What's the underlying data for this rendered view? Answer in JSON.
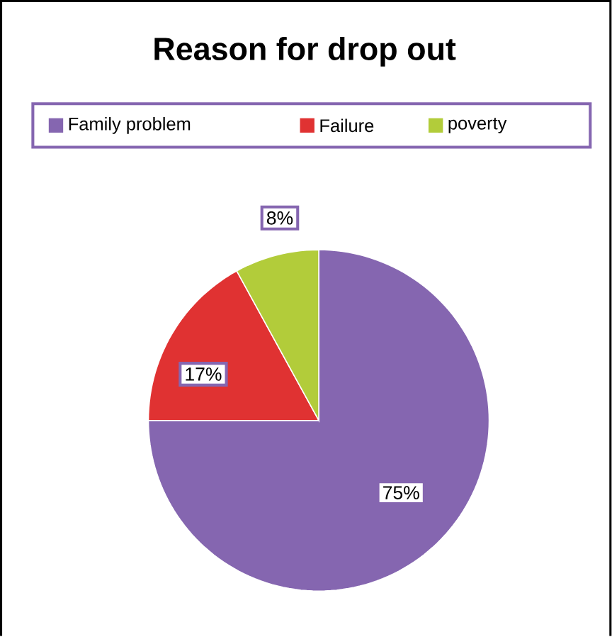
{
  "chart_data": {
    "type": "pie",
    "title": "Reason for drop out",
    "categories": [
      "Family problem",
      "Failure",
      "poverty"
    ],
    "values": [
      75,
      17,
      8
    ],
    "value_labels": [
      "75%",
      "17%",
      "8%"
    ],
    "colors": [
      "#8566b0",
      "#e03232",
      "#b2cc3a"
    ],
    "legend": "top"
  }
}
